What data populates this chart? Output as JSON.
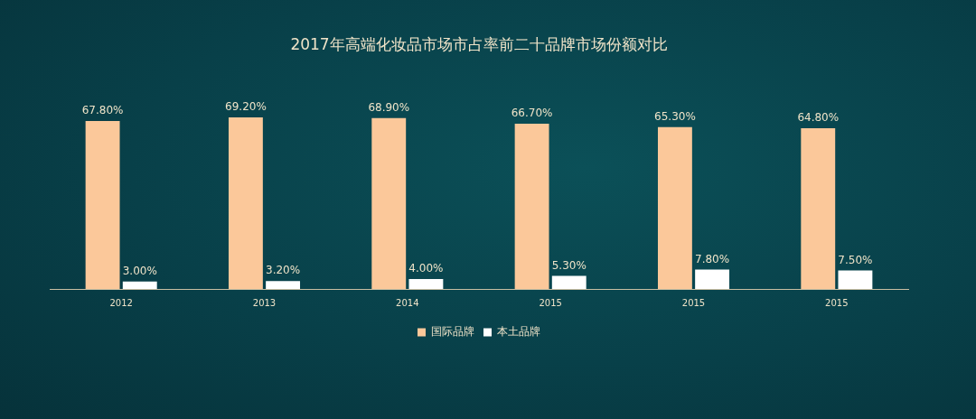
{
  "chart_data": {
    "type": "bar",
    "title": "2017年高端化妆品市场市占率前二十品牌市场份额对比",
    "categories": [
      "2012",
      "2013",
      "2014",
      "2015",
      "2015",
      "2015"
    ],
    "series": [
      {
        "name": "国际品牌",
        "color": "#fbc89a",
        "values": [
          67.8,
          69.2,
          68.9,
          66.7,
          65.3,
          64.8
        ],
        "value_labels": [
          "67.80%",
          "69.20%",
          "68.90%",
          "66.70%",
          "65.30%",
          "64.80%"
        ]
      },
      {
        "name": "本土品牌",
        "color": "#ffffff",
        "values": [
          3.0,
          3.2,
          4.0,
          5.3,
          7.8,
          7.5
        ],
        "value_labels": [
          "3.00%",
          "3.20%",
          "4.00%",
          "5.30%",
          "7.80%",
          "7.50%"
        ]
      }
    ],
    "legend": "bottom",
    "grid": false
  }
}
